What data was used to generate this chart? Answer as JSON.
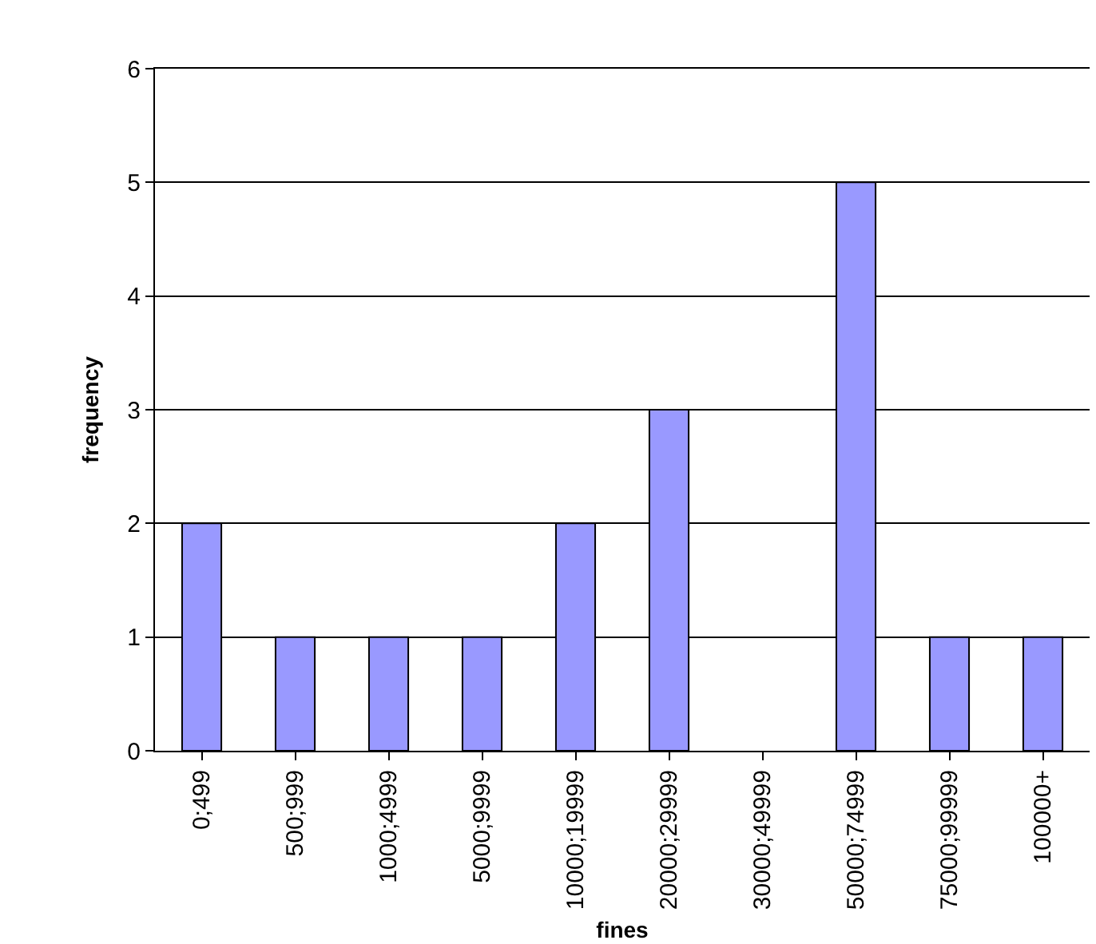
{
  "chart_data": {
    "type": "bar",
    "xlabel": "fines",
    "ylabel": "frequency",
    "categories": [
      "0;499",
      "500;999",
      "1000;4999",
      "5000;9999",
      "10000;19999",
      "20000;29999",
      "30000;49999",
      "50000;74999",
      "75000;99999",
      "100000+"
    ],
    "values": [
      2,
      1,
      1,
      1,
      2,
      3,
      0,
      5,
      1,
      1
    ],
    "color": "#9999ff",
    "ylim": [
      0,
      6
    ],
    "yticks": [
      0,
      1,
      2,
      3,
      4,
      5,
      6
    ],
    "grid": "y",
    "legend": false
  }
}
